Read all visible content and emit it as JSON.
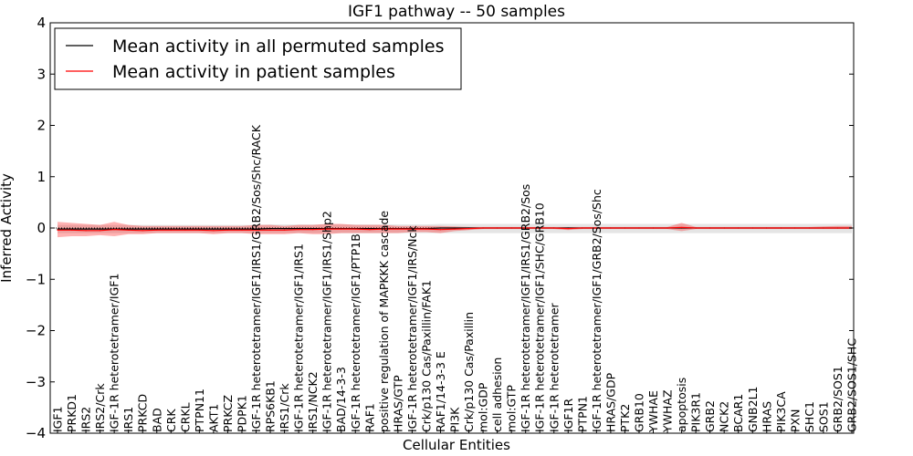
{
  "chart_data": {
    "type": "line",
    "title": "IGF1 pathway -- 50 samples",
    "xlabel": "Cellular Entities",
    "ylabel": "Inferred Activity",
    "ylim": [
      -4,
      4
    ],
    "yticks": [
      "−4",
      "−3",
      "−2",
      "−1",
      "0",
      "1",
      "2",
      "3",
      "4"
    ],
    "ytick_values": [
      -4,
      -3,
      -2,
      -1,
      0,
      1,
      2,
      3,
      4
    ],
    "legend_position": "top-left",
    "categories": [
      "IGF1",
      "PRKD1",
      "IRS2",
      "IRS2/Crk",
      "IGF-1R heterotetramer/IGF1",
      "IRS1",
      "PRKCD",
      "BAD",
      "CRK",
      "CRKL",
      "PTPN11",
      "AKT1",
      "PRKCZ",
      "PDPK1",
      "IGF-1R heterotetramer/IGF1/IRS1/GRB2/Sos/Shc/RACK",
      "RPS6KB1",
      "IRS1/Crk",
      "IGF-1R heterotetramer/IGF1/IRS1",
      "IRS1/NCK2",
      "IGF-1R heterotetramer/IGF1/IRS1/Shp2",
      "BAD/14-3-3",
      "IGF-1R heterotetramer/IGF1/PTP1B",
      "RAF1",
      "positive regulation of MAPKKK cascade",
      "HRAS/GTP",
      "IGF-1R heterotetramer/IGF1/IRS/Nck",
      "Crk/p130 Cas/Paxillin/FAK1",
      "RAF1/14-3-3 E",
      "PI3K",
      "Crk/p130 Cas/Paxillin",
      "mol:GDP",
      "cell adhesion",
      "mol:GTP",
      "IGF-1R heterotetramer/IGF1/IRS1/GRB2/Sos",
      "IGF-1R heterotetramer/IGF1/SHC/GRB10",
      "IGF-1R heterotetramer",
      "IGF1R",
      "PTPN1",
      "IGF-1R heterotetramer/IGF1/GRB2/Sos/Shc",
      "HRAS/GDP",
      "PTK2",
      "GRB10",
      "YWHAE",
      "YWHAZ",
      "apoptosis",
      "PIK3R1",
      "GRB2",
      "NCK2",
      "BCAR1",
      "GNB2L1",
      "HRAS",
      "PIK3CA",
      "PXN",
      "SHC1",
      "SOS1",
      "GRB2/SOS1",
      "GRB2/SOS1/SHC"
    ],
    "series": [
      {
        "name": "Mean activity in all permuted samples",
        "color": "#000000",
        "values": [
          -0.02,
          -0.02,
          -0.02,
          -0.02,
          -0.02,
          -0.02,
          -0.02,
          -0.02,
          -0.02,
          -0.02,
          -0.02,
          -0.02,
          -0.02,
          -0.02,
          -0.02,
          -0.01,
          -0.01,
          -0.01,
          -0.01,
          -0.01,
          -0.01,
          -0.01,
          -0.01,
          -0.01,
          -0.01,
          -0.01,
          -0.01,
          0,
          0,
          0,
          0,
          0,
          0,
          0,
          0,
          0,
          0,
          0,
          0,
          0,
          0,
          0,
          0,
          0,
          0,
          0,
          0,
          0,
          0,
          0,
          0,
          0,
          0,
          0,
          0,
          0,
          0
        ],
        "band_upper": [
          0.06,
          0.06,
          0.06,
          0.06,
          0.06,
          0.06,
          0.06,
          0.06,
          0.06,
          0.06,
          0.06,
          0.06,
          0.06,
          0.06,
          0.06,
          0.07,
          0.07,
          0.07,
          0.07,
          0.07,
          0.07,
          0.07,
          0.07,
          0.07,
          0.07,
          0.07,
          0.07,
          0.08,
          0.08,
          0.08,
          0.08,
          0.08,
          0.08,
          0.08,
          0.08,
          0.08,
          0.08,
          0.08,
          0.08,
          0.08,
          0.08,
          0.08,
          0.08,
          0.08,
          0.08,
          0.08,
          0.08,
          0.08,
          0.08,
          0.08,
          0.08,
          0.08,
          0.08,
          0.08,
          0.08,
          0.08,
          0.08
        ],
        "band_lower": [
          -0.1,
          -0.1,
          -0.1,
          -0.1,
          -0.1,
          -0.1,
          -0.1,
          -0.1,
          -0.1,
          -0.1,
          -0.1,
          -0.1,
          -0.1,
          -0.1,
          -0.1,
          -0.1,
          -0.1,
          -0.1,
          -0.1,
          -0.1,
          -0.1,
          -0.1,
          -0.1,
          -0.1,
          -0.1,
          -0.1,
          -0.1,
          -0.1,
          -0.1,
          -0.1,
          -0.1,
          -0.1,
          -0.1,
          -0.1,
          -0.1,
          -0.1,
          -0.1,
          -0.1,
          -0.1,
          -0.1,
          -0.1,
          -0.1,
          -0.1,
          -0.1,
          -0.1,
          -0.1,
          -0.1,
          -0.1,
          -0.1,
          -0.1,
          -0.1,
          -0.1,
          -0.1,
          -0.1,
          -0.1,
          -0.1,
          -0.1
        ]
      },
      {
        "name": "Mean activity in patient samples",
        "color": "#ff0000",
        "values": [
          -0.04,
          -0.04,
          -0.05,
          -0.05,
          -0.03,
          -0.04,
          -0.05,
          -0.04,
          -0.04,
          -0.04,
          -0.04,
          -0.05,
          -0.04,
          -0.04,
          -0.04,
          -0.04,
          -0.04,
          -0.03,
          -0.03,
          -0.02,
          -0.02,
          -0.02,
          -0.03,
          -0.02,
          -0.02,
          -0.02,
          -0.02,
          -0.03,
          -0.02,
          -0.01,
          0,
          0,
          0,
          0,
          0,
          0,
          -0.01,
          0,
          0,
          0,
          0,
          0,
          0,
          0,
          0.01,
          0,
          0,
          0,
          0,
          0,
          0,
          0,
          0,
          0,
          0,
          0,
          0
        ],
        "band_upper": [
          0.12,
          0.1,
          0.08,
          0.06,
          0.12,
          0.06,
          0.04,
          0.04,
          0.04,
          0.04,
          0.04,
          0.04,
          0.04,
          0.04,
          0.06,
          0.06,
          0.04,
          0.06,
          0.06,
          0.08,
          0.08,
          0.06,
          0.06,
          0.06,
          0.04,
          0.04,
          0.04,
          0.04,
          0.03,
          0.02,
          0.02,
          0.02,
          0.02,
          0.02,
          0.02,
          0.02,
          0.02,
          0.02,
          0.02,
          0.02,
          0.02,
          0.02,
          0.02,
          0.02,
          0.1,
          0.02,
          0.02,
          0.02,
          0.02,
          0.02,
          0.02,
          0.02,
          0.02,
          0.02,
          0.03,
          0.04,
          0.04
        ],
        "band_lower": [
          -0.18,
          -0.16,
          -0.16,
          -0.14,
          -0.16,
          -0.12,
          -0.12,
          -0.1,
          -0.1,
          -0.1,
          -0.1,
          -0.12,
          -0.1,
          -0.1,
          -0.12,
          -0.12,
          -0.12,
          -0.1,
          -0.12,
          -0.12,
          -0.1,
          -0.1,
          -0.1,
          -0.1,
          -0.1,
          -0.08,
          -0.08,
          -0.1,
          -0.06,
          -0.04,
          -0.02,
          -0.02,
          -0.02,
          -0.02,
          -0.02,
          -0.02,
          -0.04,
          -0.02,
          -0.02,
          -0.02,
          -0.02,
          -0.02,
          -0.02,
          -0.02,
          -0.06,
          -0.02,
          -0.02,
          -0.02,
          -0.02,
          -0.02,
          -0.02,
          -0.02,
          -0.02,
          -0.02,
          -0.02,
          -0.02,
          -0.02
        ]
      }
    ]
  }
}
